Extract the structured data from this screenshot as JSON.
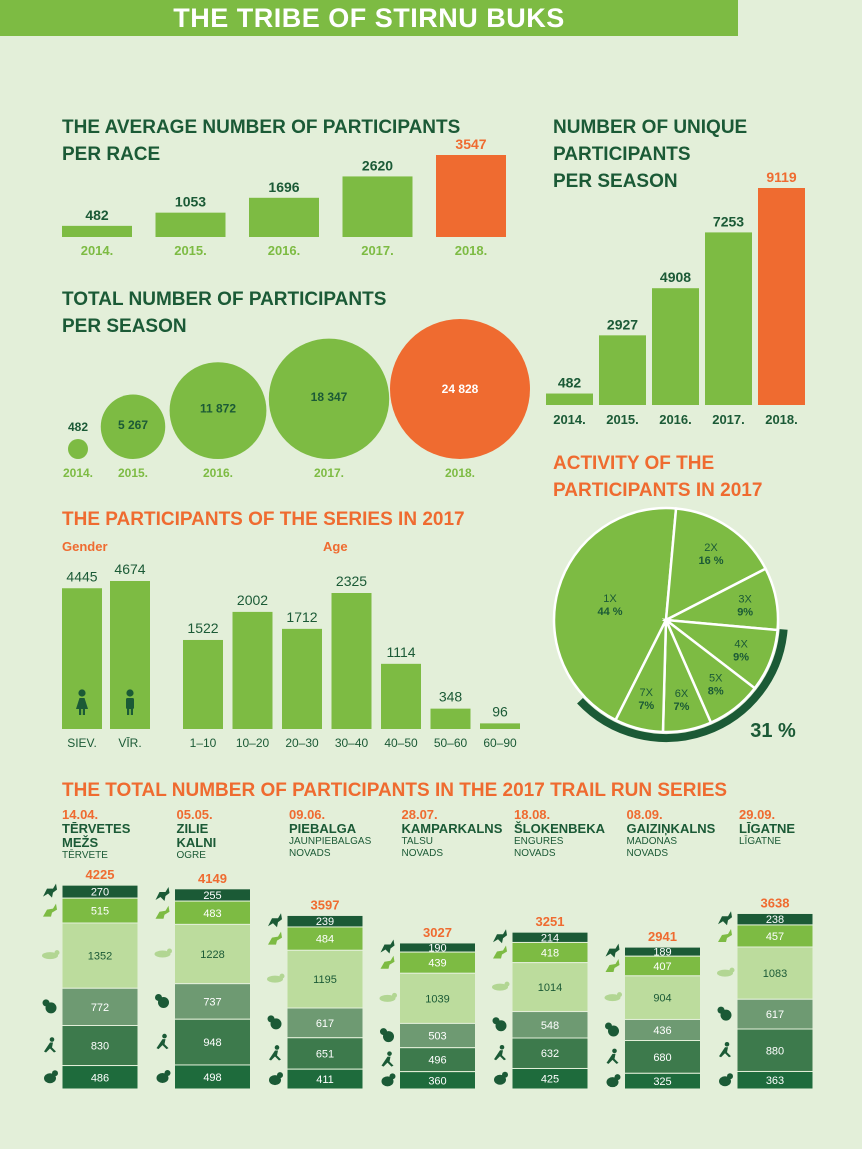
{
  "title": "THE TRIBE OF STIRNU BUKS",
  "colors": {
    "green": "#7dbb43",
    "orange": "#ef6b30",
    "dark": "#1b5a36",
    "bg": "#e3efd9"
  },
  "sections": {
    "avg_title": "THE AVERAGE NUMBER OF PARTICIPANTS\nPER RACE",
    "unique_title": "NUMBER OF UNIQUE\nPARTICIPANTS\nPER SEASON",
    "total_title": "TOTAL NUMBER OF PARTICIPANTS\nPER SEASON",
    "activity_title": "ACTIVITY OF THE\nPARTICIPANTS IN 2017",
    "series_title": "THE PARTICIPANTS OF THE SERIES IN 2017",
    "gender_label": "Gender",
    "age_label": "Age",
    "trail_title": "THE TOTAL NUMBER OF PARTICIPANTS IN THE 2017 TRAIL RUN SERIES"
  },
  "chart_data": [
    {
      "id": "avg",
      "type": "bar",
      "categories": [
        "2014.",
        "2015.",
        "2016.",
        "2017.",
        "2018."
      ],
      "values": [
        482,
        1053,
        1696,
        2620,
        3547
      ],
      "highlight": "2018."
    },
    {
      "id": "unique",
      "type": "bar",
      "categories": [
        "2014.",
        "2015.",
        "2016.",
        "2017.",
        "2018."
      ],
      "values": [
        482,
        2927,
        4908,
        7253,
        9119
      ],
      "highlight": "2018."
    },
    {
      "id": "total",
      "type": "bubble",
      "categories": [
        "2014.",
        "2015.",
        "2016.",
        "2017.",
        "2018."
      ],
      "values": [
        482,
        5267,
        11872,
        18347,
        24828
      ],
      "value_labels": [
        "482",
        "5 267",
        "11 872",
        "18 347",
        "24 828"
      ],
      "highlight": "2018."
    },
    {
      "id": "gender",
      "type": "bar",
      "categories": [
        "SIEV.",
        "VĪR."
      ],
      "values": [
        4445,
        4674
      ],
      "icons": [
        "female-icon",
        "male-icon"
      ]
    },
    {
      "id": "age",
      "type": "bar",
      "categories": [
        "1–10",
        "10–20",
        "20–30",
        "30–40",
        "40–50",
        "50–60",
        "60–90"
      ],
      "values": [
        1522,
        2002,
        1712,
        2325,
        1114,
        348,
        96
      ]
    },
    {
      "id": "activity",
      "type": "pie",
      "slices": [
        {
          "label": "1X",
          "value": 44,
          "value_label": "44 %"
        },
        {
          "label": "2X",
          "value": 16,
          "value_label": "16 %"
        },
        {
          "label": "3X",
          "value": 9,
          "value_label": "9%"
        },
        {
          "label": "4X",
          "value": 9,
          "value_label": "9%"
        },
        {
          "label": "5X",
          "value": 8,
          "value_label": "8%"
        },
        {
          "label": "6X",
          "value": 7,
          "value_label": "7%"
        },
        {
          "label": "7X",
          "value": 7,
          "value_label": "7%"
        }
      ],
      "arc_label": "31 %"
    },
    {
      "id": "trail",
      "type": "stacked-bar",
      "segment_icons": [
        "deer-icon",
        "roe-icon",
        "hare-icon",
        "squirrel-icon",
        "runner-icon",
        "bear-icon"
      ],
      "segment_colors": [
        "#1b5a36",
        "#7dbb43",
        "#bcdc9d",
        "#6e9a72",
        "#3d7a4c",
        "#1e6b3c"
      ],
      "segment_text_colors": [
        "#ffffff",
        "#ffffff",
        "#1b5a36",
        "#ffffff",
        "#ffffff",
        "#ffffff"
      ],
      "races": [
        {
          "date": "14.04.",
          "name": "TĒRVETES\nMEŽS",
          "location": "TĒRVETE",
          "total": 4225,
          "segments": [
            270,
            515,
            1352,
            772,
            830,
            486
          ]
        },
        {
          "date": "05.05.",
          "name": "ZILIE\nKALNI",
          "location": "OGRE",
          "total": 4149,
          "segments": [
            255,
            483,
            1228,
            737,
            948,
            498
          ]
        },
        {
          "date": "09.06.",
          "name": "PIEBALGA",
          "location": "JAUNPIEBALGAS\nNOVADS",
          "total": 3597,
          "segments": [
            239,
            484,
            1195,
            617,
            651,
            411
          ]
        },
        {
          "date": "28.07.",
          "name": "KAMPARKALNS",
          "location": "TALSU\nNOVADS",
          "total": 3027,
          "segments": [
            190,
            439,
            1039,
            503,
            496,
            360
          ]
        },
        {
          "date": "18.08.",
          "name": "ŠLOKENBEKA",
          "location": "ENGURES\nNOVADS",
          "total": 3251,
          "segments": [
            214,
            418,
            1014,
            548,
            632,
            425
          ]
        },
        {
          "date": "08.09.",
          "name": "GAIZIŅKALNS",
          "location": "MADONAS\nNOVADS",
          "total": 2941,
          "segments": [
            189,
            407,
            904,
            436,
            680,
            325
          ]
        },
        {
          "date": "29.09.",
          "name": "LĪGATNE",
          "location": "LĪGATNE",
          "total": 3638,
          "segments": [
            238,
            457,
            1083,
            617,
            880,
            363
          ]
        }
      ]
    }
  ]
}
